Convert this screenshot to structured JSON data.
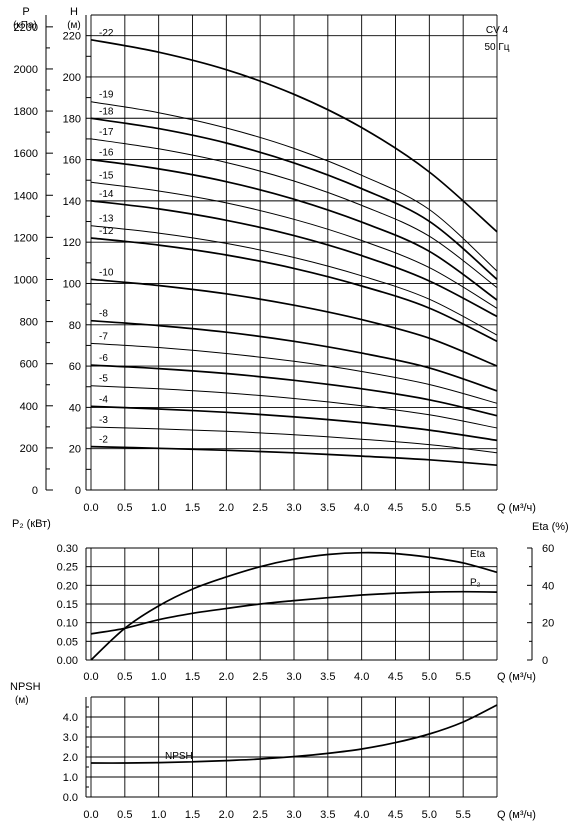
{
  "chart_data": [
    {
      "type": "line",
      "title": "CV 4",
      "subtitle": "50 Гц",
      "y_left_label": "P",
      "y_left_unit": "(кПа)",
      "y_right_label": "H",
      "y_right_unit": "(м)",
      "x_label": "Q (м³/ч)",
      "xlim": [
        0,
        6
      ],
      "ylim_H": [
        0,
        230
      ],
      "x_ticks": [
        "0.0",
        "0.5",
        "1.0",
        "1.5",
        "2.0",
        "2.5",
        "3.0",
        "3.5",
        "4.0",
        "4.5",
        "5.0",
        "5.5"
      ],
      "H_ticks": [
        "0",
        "20",
        "40",
        "60",
        "80",
        "100",
        "120",
        "140",
        "160",
        "180",
        "200",
        "220"
      ],
      "P_ticks": [
        "0",
        "200",
        "400",
        "600",
        "800",
        "1000",
        "1200",
        "1400",
        "1600",
        "1800",
        "2000",
        "2200"
      ],
      "grid": true,
      "series": [
        {
          "name": "-2",
          "x": [
            0,
            1,
            2,
            3,
            4,
            5,
            6
          ],
          "values": [
            21,
            20.2,
            19.2,
            18,
            16.4,
            14.6,
            12
          ]
        },
        {
          "name": "-3",
          "x": [
            0,
            1,
            2,
            3,
            4,
            5,
            6
          ],
          "values": [
            30.5,
            29.6,
            28.4,
            26.8,
            24.6,
            22,
            18
          ]
        },
        {
          "name": "-4",
          "x": [
            0,
            1,
            2,
            3,
            4,
            5,
            6
          ],
          "values": [
            40.5,
            39.2,
            37.6,
            35.4,
            32.6,
            29,
            24
          ]
        },
        {
          "name": "-5",
          "x": [
            0,
            1,
            2,
            3,
            4,
            5,
            6
          ],
          "values": [
            50.5,
            49,
            47,
            44.3,
            40.8,
            36.4,
            30
          ]
        },
        {
          "name": "-6",
          "x": [
            0,
            1,
            2,
            3,
            4,
            5,
            6
          ],
          "values": [
            60.5,
            58.8,
            56.4,
            53.1,
            49,
            43.7,
            36
          ]
        },
        {
          "name": "-7",
          "x": [
            0,
            1,
            2,
            3,
            4,
            5,
            6
          ],
          "values": [
            71,
            69,
            66.1,
            62.3,
            57.4,
            51.1,
            42
          ]
        },
        {
          "name": "-8",
          "x": [
            0,
            1,
            2,
            3,
            4,
            5,
            6
          ],
          "values": [
            82,
            79.6,
            76.4,
            72,
            66.3,
            59.1,
            48
          ]
        },
        {
          "name": "-10",
          "x": [
            0,
            1,
            2,
            3,
            4,
            5,
            6
          ],
          "values": [
            102,
            99,
            95,
            89.5,
            82.5,
            73.5,
            60
          ]
        },
        {
          "name": "-12",
          "x": [
            0,
            1,
            2,
            3,
            4,
            5,
            6
          ],
          "values": [
            122,
            118.6,
            113.8,
            107.3,
            98.8,
            88.1,
            72
          ]
        },
        {
          "name": "-13",
          "x": [
            0,
            1,
            2,
            3,
            4,
            5,
            6
          ],
          "values": [
            128,
            124.4,
            119.4,
            112.6,
            103.7,
            92.4,
            75
          ]
        },
        {
          "name": "-14",
          "x": [
            0,
            1,
            2,
            3,
            4,
            5,
            6
          ],
          "values": [
            140,
            136.1,
            130.6,
            123.2,
            113.5,
            101.2,
            84
          ]
        },
        {
          "name": "-15",
          "x": [
            0,
            1,
            2,
            3,
            4,
            5,
            6
          ],
          "values": [
            149,
            144.8,
            139,
            131.1,
            120.8,
            107.7,
            88
          ]
        },
        {
          "name": "-16",
          "x": [
            0,
            1,
            2,
            3,
            4,
            5,
            6
          ],
          "values": [
            160,
            155.5,
            149.3,
            140.8,
            129.7,
            115.6,
            92
          ]
        },
        {
          "name": "-17",
          "x": [
            0,
            1,
            2,
            3,
            4,
            5,
            6
          ],
          "values": [
            170,
            165.2,
            158.6,
            149.6,
            137.8,
            122.9,
            98
          ]
        },
        {
          "name": "-18",
          "x": [
            0,
            1,
            2,
            3,
            4,
            5,
            6
          ],
          "values": [
            180,
            175,
            168,
            158.4,
            145.9,
            130.1,
            102
          ]
        },
        {
          "name": "-19",
          "x": [
            0,
            1,
            2,
            3,
            4,
            5,
            6
          ],
          "values": [
            188,
            182.7,
            175.3,
            165.4,
            152.4,
            135.8,
            106
          ]
        },
        {
          "name": "-22",
          "x": [
            0,
            1,
            2,
            3,
            4,
            5,
            6
          ],
          "values": [
            218,
            212,
            203.5,
            191.6,
            175.5,
            154,
            125
          ]
        }
      ]
    },
    {
      "type": "line",
      "y_left_label": "P₂ (кВт)",
      "y_right_label": "Eta (%)",
      "x_label": "Q (м³/ч)",
      "xlim": [
        0,
        6
      ],
      "ylim_P2": [
        0,
        0.3
      ],
      "ylim_Eta": [
        0,
        60
      ],
      "x_ticks": [
        "0.0",
        "0.5",
        "1.0",
        "1.5",
        "2.0",
        "2.5",
        "3.0",
        "3.5",
        "4.0",
        "4.5",
        "5.0",
        "5.5"
      ],
      "P2_ticks": [
        "0.00",
        "0.05",
        "0.10",
        "0.15",
        "0.20",
        "0.25",
        "0.30"
      ],
      "Eta_ticks": [
        "0",
        "20",
        "40",
        "60"
      ],
      "grid": true,
      "series": [
        {
          "name": "Eta",
          "axis": "right",
          "x": [
            0,
            0.5,
            1,
            1.5,
            2,
            2.5,
            3,
            3.5,
            4,
            4.5,
            5,
            5.5,
            6
          ],
          "values": [
            0,
            17,
            29,
            38,
            44.5,
            50,
            54,
            56.5,
            57.5,
            57,
            55,
            52,
            47
          ]
        },
        {
          "name": "P₂",
          "axis": "left",
          "x": [
            0,
            0.5,
            1,
            1.5,
            2,
            2.5,
            3,
            3.5,
            4,
            4.5,
            5,
            5.5,
            6
          ],
          "values": [
            0.07,
            0.085,
            0.108,
            0.125,
            0.138,
            0.15,
            0.159,
            0.167,
            0.174,
            0.179,
            0.182,
            0.183,
            0.182
          ]
        }
      ]
    },
    {
      "type": "line",
      "y_label": "NPSH",
      "y_unit": "(м)",
      "x_label": "Q (м³/ч)",
      "xlim": [
        0,
        6
      ],
      "ylim": [
        0,
        5
      ],
      "x_ticks": [
        "0.0",
        "0.5",
        "1.0",
        "1.5",
        "2.0",
        "2.5",
        "3.0",
        "3.5",
        "4.0",
        "4.5",
        "5.0",
        "5.5"
      ],
      "y_ticks": [
        "0.0",
        "1.0",
        "2.0",
        "3.0",
        "4.0"
      ],
      "grid": true,
      "series": [
        {
          "name": "NPSH",
          "x": [
            0,
            0.5,
            1,
            1.5,
            2,
            2.5,
            3,
            3.5,
            4,
            4.5,
            5,
            5.5,
            6
          ],
          "values": [
            1.7,
            1.7,
            1.72,
            1.76,
            1.82,
            1.9,
            2.02,
            2.18,
            2.4,
            2.72,
            3.15,
            3.75,
            4.6
          ]
        }
      ]
    }
  ]
}
